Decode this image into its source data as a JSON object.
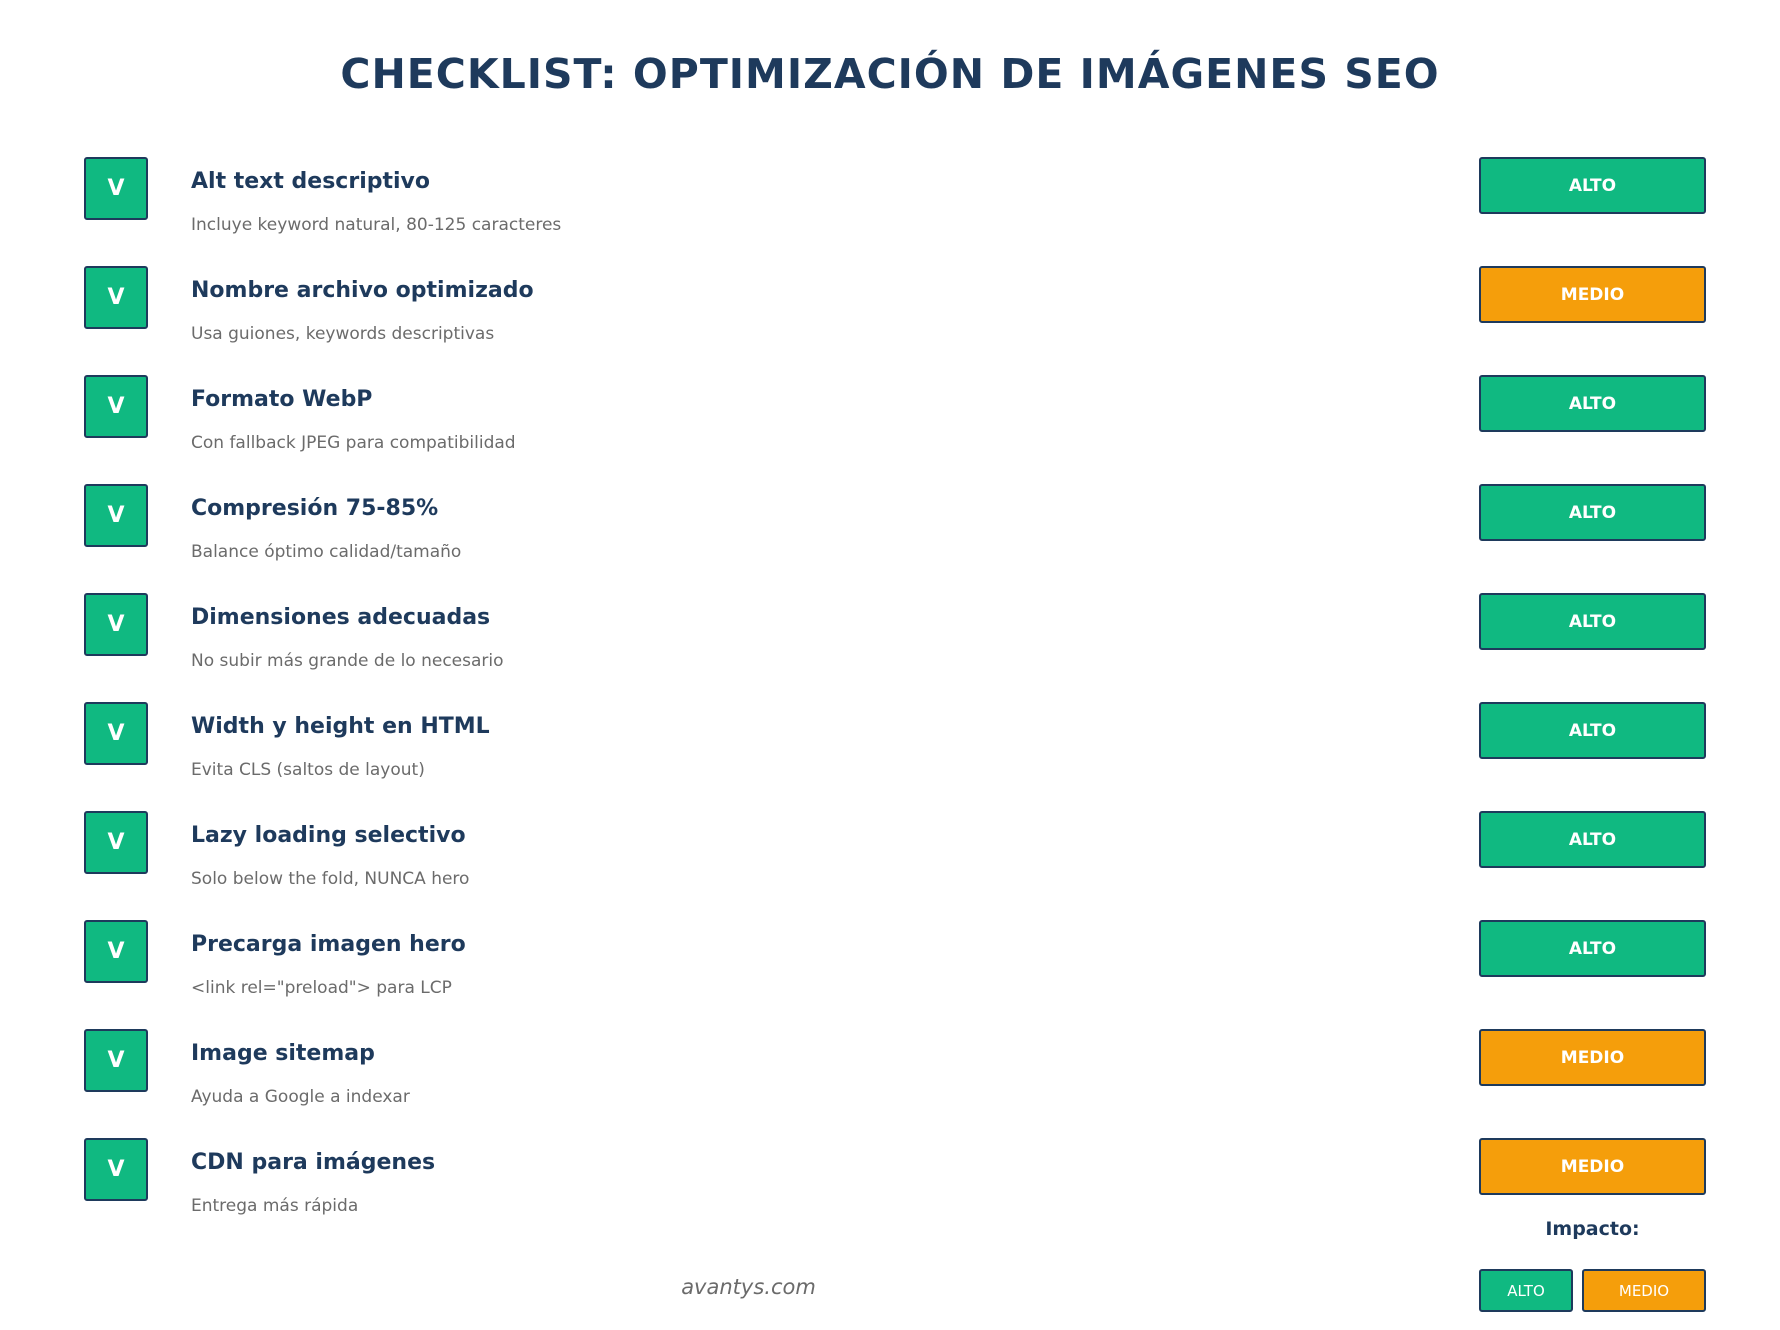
{
  "title": "CHECKLIST: OPTIMIZACIÓN DE IMÁGENES SEO",
  "colors": {
    "alto": "#10b981",
    "medio": "#f59e0b",
    "navy": "#1e3a5c",
    "muted": "#6b6b6b"
  },
  "items": [
    {
      "check": "V",
      "title": "Alt text descriptivo",
      "desc": "Incluye keyword natural, 80-125 caracteres",
      "impact": "ALTO"
    },
    {
      "check": "V",
      "title": "Nombre archivo optimizado",
      "desc": "Usa guiones, keywords descriptivas",
      "impact": "MEDIO"
    },
    {
      "check": "V",
      "title": "Formato WebP",
      "desc": "Con fallback JPEG para compatibilidad",
      "impact": "ALTO"
    },
    {
      "check": "V",
      "title": "Compresión 75-85%",
      "desc": "Balance óptimo calidad/tamaño",
      "impact": "ALTO"
    },
    {
      "check": "V",
      "title": "Dimensiones adecuadas",
      "desc": "No subir más grande de lo necesario",
      "impact": "ALTO"
    },
    {
      "check": "V",
      "title": "Width y height en HTML",
      "desc": "Evita CLS (saltos de layout)",
      "impact": "ALTO"
    },
    {
      "check": "V",
      "title": "Lazy loading selectivo",
      "desc": "Solo below the fold, NUNCA hero",
      "impact": "ALTO"
    },
    {
      "check": "V",
      "title": "Precarga imagen hero",
      "desc": "<link rel=\"preload\"> para LCP",
      "impact": "ALTO"
    },
    {
      "check": "V",
      "title": "Image sitemap",
      "desc": "Ayuda a Google a indexar",
      "impact": "MEDIO"
    },
    {
      "check": "V",
      "title": "CDN para imágenes",
      "desc": "Entrega más rápida",
      "impact": "MEDIO"
    }
  ],
  "legend": {
    "title": "Impacto:",
    "alto": "ALTO",
    "medio": "MEDIO"
  },
  "footer": "avantys.com"
}
